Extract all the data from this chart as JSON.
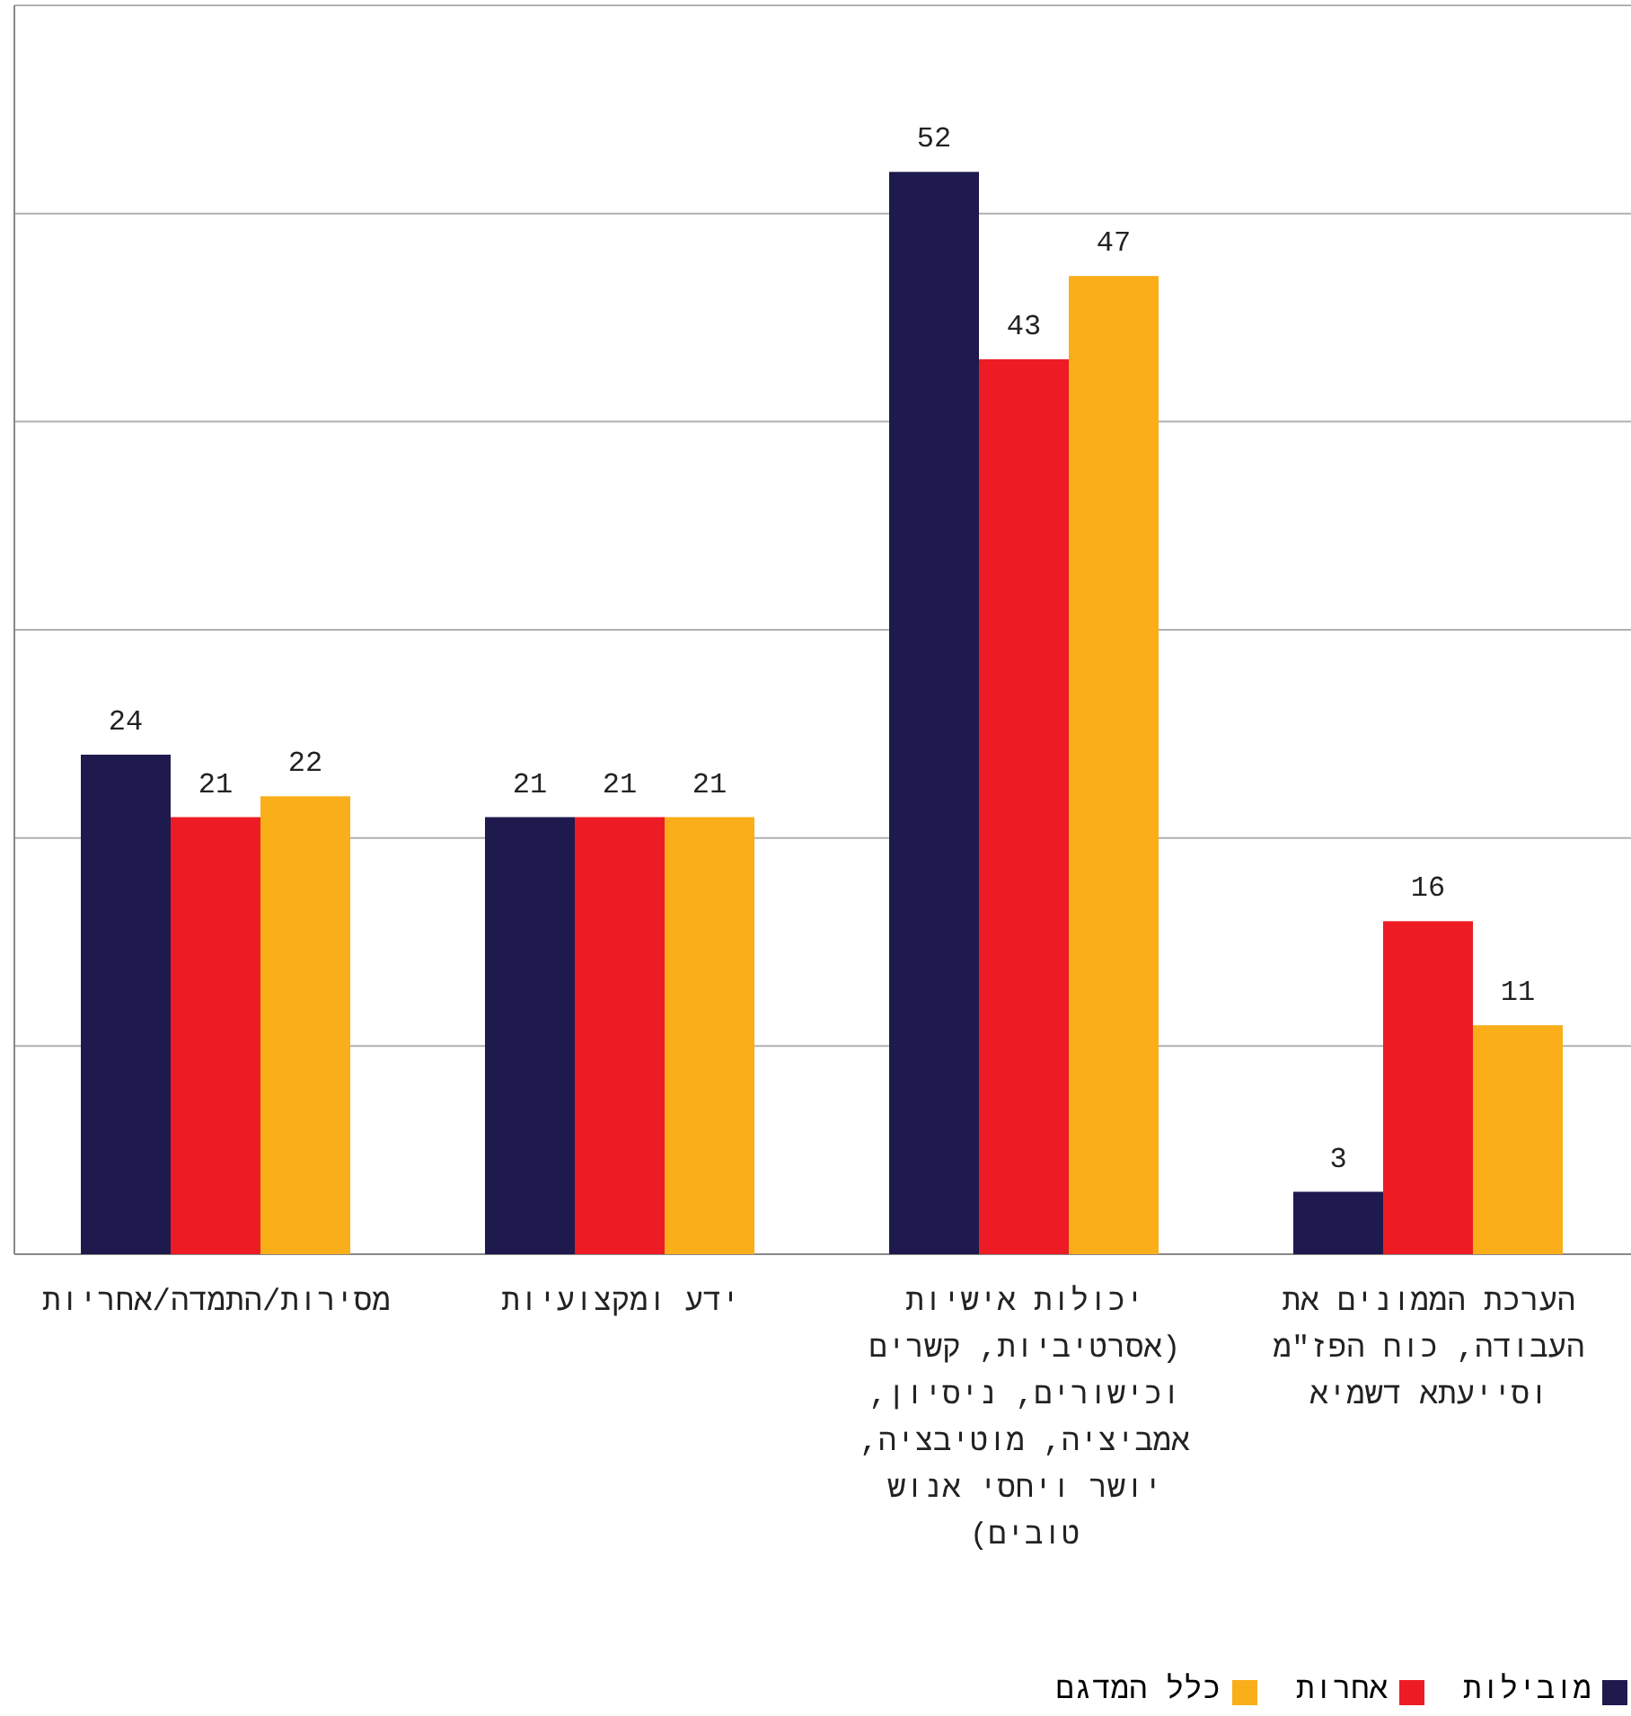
{
  "chart_data": {
    "type": "bar",
    "categories": [
      "מסירות/התמדה/אחריות",
      "ידע ומקצועיות",
      "יכולות אישיות (אסרטיביות, קשרים וכישורים, ניסיון, אמביציה, מוטיבציה, יושר ויחסי אנוש טובים)",
      "הערכת הממונים את העבודה, כוח הפז\"מ וסייעתא דשמיא"
    ],
    "series": [
      {
        "name": "מובילות",
        "color": "#1e1a4e",
        "values": [
          24,
          21,
          52,
          3
        ]
      },
      {
        "name": "אחרות",
        "color": "#ed1c24",
        "values": [
          21,
          21,
          43,
          16
        ]
      },
      {
        "name": "כלל המדגם",
        "color": "#f9ae1a",
        "values": [
          22,
          21,
          47,
          11
        ]
      }
    ],
    "ylim": [
      0,
      60
    ],
    "yticks": [
      {
        "value": 0,
        "label": null
      },
      {
        "value": 10,
        "label": null
      },
      {
        "value": 20,
        "label": null
      },
      {
        "value": 30,
        "label": null
      },
      {
        "value": 40,
        "label": null
      },
      {
        "value": 50,
        "label": null
      },
      {
        "value": 60,
        "label": null
      }
    ],
    "grid": "y",
    "tick_labels": "x",
    "data_labels": true,
    "legend": "bottom right"
  }
}
